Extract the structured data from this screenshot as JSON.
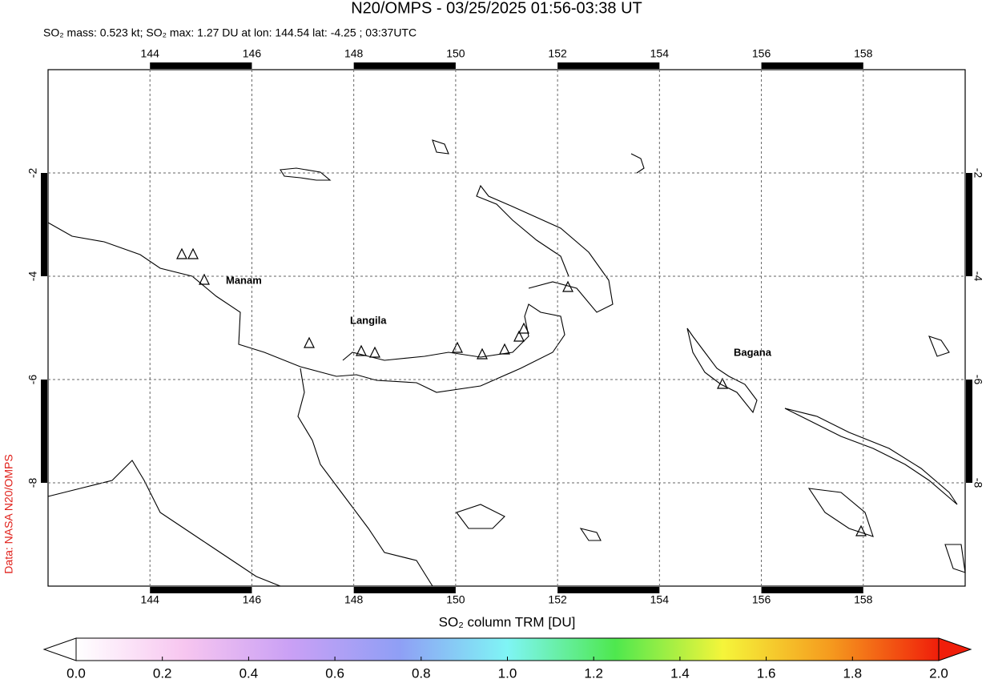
{
  "header": {
    "title": "N20/OMPS - 03/25/2025 01:56-03:38 UT",
    "subtitle": "SO₂ mass: 0.523 kt; SO₂ max: 1.27 DU at lon: 144.54 lat: -4.25 ; 03:37UTC"
  },
  "map": {
    "xlim": [
      142,
      160
    ],
    "ylim": [
      -10,
      0
    ],
    "xticks": [
      144,
      146,
      148,
      150,
      152,
      154,
      156,
      158
    ],
    "yticks": [
      -2,
      -4,
      -6,
      -8
    ],
    "grid": true,
    "labels": [
      "Manam",
      "Langila",
      "Bagana"
    ]
  },
  "colorbar": {
    "label": "SO₂ column TRM [DU]",
    "lim": [
      0,
      2
    ],
    "ticks": [
      {
        "value": 0,
        "label": "0.0"
      },
      0.2,
      0.4,
      0.6,
      0.8,
      {
        "value": 1,
        "label": "1.0"
      },
      1.2,
      1.4,
      1.6,
      1.8,
      {
        "value": 2,
        "label": "2.0"
      }
    ],
    "colors": [
      "#ffffff",
      "#f7c6f0",
      "#c9a0f5",
      "#8f9ff5",
      "#7ff5f5",
      "#4ee84e",
      "#f5f53a",
      "#f59a1e",
      "#f01e0a"
    ]
  },
  "credit": "Data: NASA N20/OMPS"
}
